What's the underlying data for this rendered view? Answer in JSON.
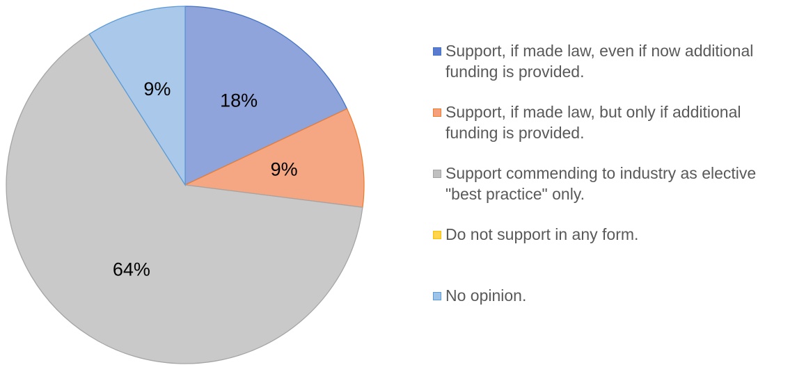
{
  "chart_data": {
    "type": "pie",
    "title": "",
    "slices": [
      {
        "label": "Support, if made law, even if now additional funding is provided.",
        "value": 18,
        "data_label": "18%",
        "color": "#8FA4DA",
        "edge": "#4472C4",
        "legend_color": "#5B7BD0"
      },
      {
        "label": "Support, if made law, but only if additional funding is provided.",
        "value": 9,
        "data_label": "9%",
        "color": "#F5A784",
        "edge": "#ED7D31",
        "legend_color": "#F4A07C"
      },
      {
        "label": "Support commending to industry as elective \"best practice\" only.",
        "value": 64,
        "data_label": "64%",
        "color": "#C9C9C9",
        "edge": "#A5A5A5",
        "legend_color": "#C0C0C0"
      },
      {
        "label": "Do not support in any form.",
        "value": 0,
        "data_label": "",
        "color": "#FFD966",
        "edge": "#FFC000",
        "legend_color": "#FFD54F"
      },
      {
        "label": "No opinion.",
        "value": 9,
        "data_label": "9%",
        "color": "#A9C8EA",
        "edge": "#5B9BD5",
        "legend_color": "#9DC3E6"
      }
    ],
    "legend_placement": "right"
  }
}
